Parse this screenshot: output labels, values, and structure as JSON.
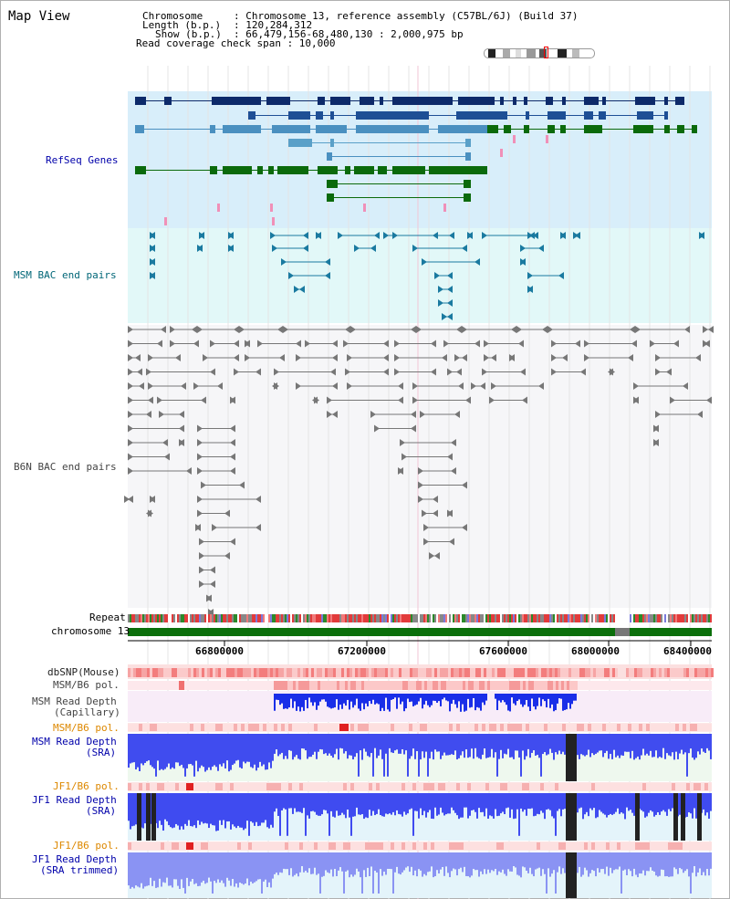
{
  "title": "Map View",
  "header": {
    "chromosome_key": "Chromosome",
    "chromosome_val": ": Chromosome 13, reference assembly (C57BL/6J) (Build 37)",
    "length_key": "Length (b.p.)",
    "length_val": ": 120,284,312",
    "show_key": "Show (b.p.)",
    "show_val": ": 66,479,156-68,480,130 : 2,000,975 bp",
    "coverage": "Read coverage check span : 10,000"
  },
  "tracks": {
    "refseq": "RefSeq Genes",
    "msm_bac": "MSM BAC end pairs",
    "b6n_bac": "B6N BAC end pairs",
    "repeat": "Repeat",
    "chromosome": "chromosome 13",
    "dbsnp": "dbSNP(Mouse)",
    "msm_b6_pol_1": "MSM/B6 pol.",
    "msm_depth_cap_1": "MSM Read Depth",
    "msm_depth_cap_2": "(Capillary)",
    "msm_b6_pol_2": "MSM/B6 pol.",
    "msm_depth_sra_1": "MSM Read Depth",
    "msm_depth_sra_2": "(SRA)",
    "jf1_b6_pol_1": "JF1/B6 pol.",
    "jf1_depth_sra_1": "JF1 Read Depth",
    "jf1_depth_sra_2": "(SRA)",
    "jf1_b6_pol_2": "JF1/B6 pol.",
    "jf1_depth_trim_1": "JF1 Read Depth",
    "jf1_depth_trim_2": "(SRA trimmed)"
  },
  "ruler": {
    "ticks": [
      "66800000",
      "67200000",
      "67600000",
      "68000000",
      "68400000"
    ]
  },
  "colors": {
    "refseq_bg": "#d8eefa",
    "msm_bac_bg": "#e2f8f8",
    "label_blue": "#0000aa",
    "label_teal": "#006677",
    "label_orange": "#dd8800",
    "chrom_green": "#0b6f0b",
    "depth_blue": "#1a2ee8"
  }
}
